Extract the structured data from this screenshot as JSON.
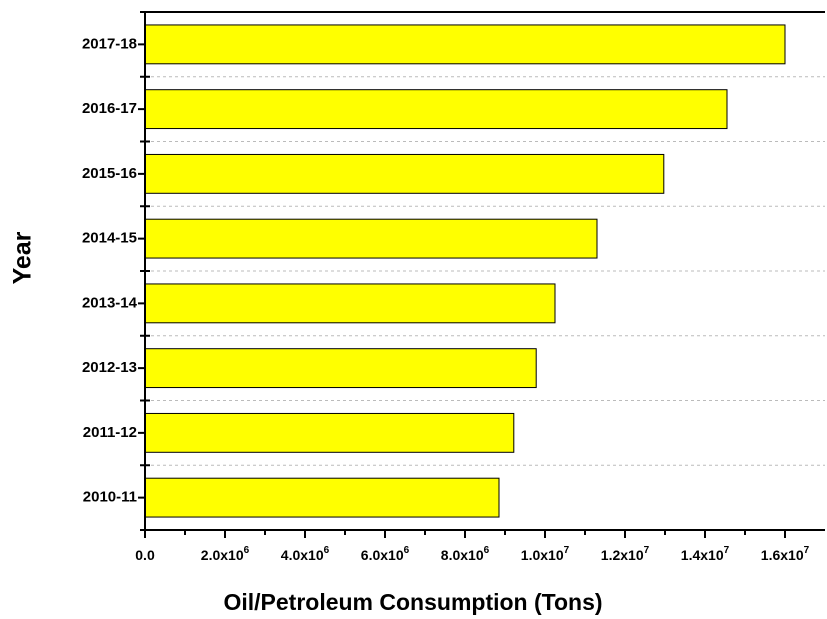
{
  "chart_data": {
    "type": "bar",
    "orientation": "horizontal",
    "x_label": "Oil/Petroleum Consumption (Tons)",
    "y_label": "Year",
    "categories": [
      "2010-11",
      "2011-12",
      "2012-13",
      "2013-14",
      "2014-15",
      "2015-16",
      "2016-17",
      "2017-18"
    ],
    "values": [
      8850000,
      9220000,
      9780000,
      10250000,
      11300000,
      12970000,
      14550000,
      16000000
    ],
    "color": "#ffff00",
    "xlim": [
      0,
      17000000
    ],
    "xticks": [
      {
        "value": 0,
        "label": "0.0"
      },
      {
        "value": 2000000,
        "label": "2.0x10",
        "exponent": "6"
      },
      {
        "value": 4000000,
        "label": "4.0x10",
        "exponent": "6"
      },
      {
        "value": 6000000,
        "label": "6.0x10",
        "exponent": "6"
      },
      {
        "value": 8000000,
        "label": "8.0x10",
        "exponent": "6"
      },
      {
        "value": 10000000,
        "label": "1.0x10",
        "exponent": "7"
      },
      {
        "value": 12000000,
        "label": "1.2x10",
        "exponent": "7"
      },
      {
        "value": 14000000,
        "label": "1.4x10",
        "exponent": "7"
      },
      {
        "value": 16000000,
        "label": "1.6x10",
        "exponent": "7"
      }
    ],
    "grid": true
  }
}
